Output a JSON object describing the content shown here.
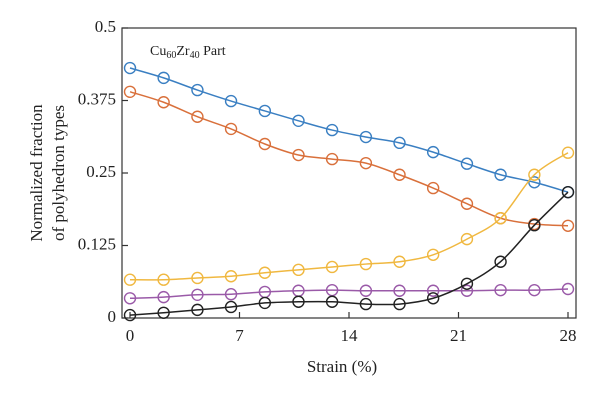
{
  "chart_data": {
    "type": "line",
    "xlabel": "Strain (%)",
    "ylabel": [
      "Normalized fraction",
      "of polyhedron types"
    ],
    "annotation": [
      "Cu",
      "60",
      "Zr",
      "40",
      " Part"
    ],
    "x": [
      0,
      2.15,
      4.31,
      6.46,
      8.62,
      10.77,
      12.92,
      15.08,
      17.23,
      19.38,
      21.54,
      23.69,
      25.85,
      28
    ],
    "series": [
      {
        "color": "#3a7fc2",
        "values": [
          0.431,
          0.414,
          0.393,
          0.374,
          0.357,
          0.34,
          0.324,
          0.312,
          0.302,
          0.286,
          0.266,
          0.247,
          0.234,
          0.217
        ]
      },
      {
        "color": "#d9703b",
        "values": [
          0.39,
          0.372,
          0.347,
          0.326,
          0.3,
          0.281,
          0.274,
          0.267,
          0.247,
          0.224,
          0.197,
          0.172,
          0.162,
          0.159
        ]
      },
      {
        "color": "#f0b840",
        "values": [
          0.066,
          0.066,
          0.069,
          0.072,
          0.078,
          0.083,
          0.088,
          0.093,
          0.097,
          0.109,
          0.136,
          0.172,
          0.247,
          0.285
        ]
      },
      {
        "color": "#9a5aa8",
        "values": [
          0.034,
          0.036,
          0.04,
          0.041,
          0.045,
          0.047,
          0.048,
          0.047,
          0.047,
          0.047,
          0.047,
          0.048,
          0.048,
          0.05
        ]
      },
      {
        "color": "#222222",
        "values": [
          0.005,
          0.009,
          0.014,
          0.019,
          0.026,
          0.028,
          0.028,
          0.024,
          0.024,
          0.034,
          0.059,
          0.097,
          0.16,
          0.217
        ]
      }
    ],
    "xlim": [
      0,
      28
    ],
    "xticks": [
      0,
      7,
      14,
      21,
      28
    ],
    "ylim": [
      0,
      0.5
    ],
    "yticks": [
      0,
      0.125,
      0.25,
      0.375,
      0.5
    ]
  }
}
